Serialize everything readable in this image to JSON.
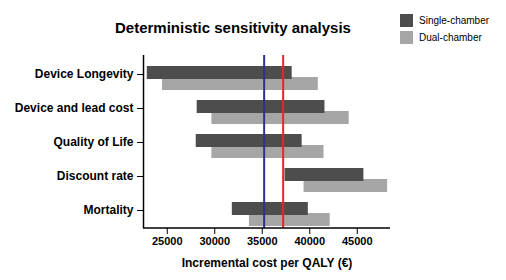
{
  "chart_data": {
    "type": "bar",
    "orientation": "horizontal",
    "title": "Deterministic sensitivity analysis",
    "x_label": "Incremental cost per QALY (€)",
    "categories": [
      "Device Longevity",
      "Device and lead cost",
      "Quality of Life",
      "Discount rate",
      "Mortality"
    ],
    "series": [
      {
        "name": "Single-chamber",
        "color": "#4d4d4d",
        "values": [
          [
            22900,
            38150
          ],
          [
            28150,
            41600
          ],
          [
            28050,
            39200
          ],
          [
            37400,
            45700
          ],
          [
            31850,
            39850
          ]
        ]
      },
      {
        "name": "Dual-chamber",
        "color": "#a6a6a6",
        "values": [
          [
            24500,
            40900
          ],
          [
            29700,
            44150
          ],
          [
            29700,
            41500
          ],
          [
            39400,
            48200
          ],
          [
            33650,
            42150
          ]
        ]
      }
    ],
    "reference_lines": [
      {
        "value": 35200,
        "color": "#2e3192"
      },
      {
        "value": 37200,
        "color": "#e8262a"
      }
    ],
    "xlim": [
      22500,
      48500
    ],
    "xticks": [
      25000,
      30000,
      35000,
      40000,
      45000
    ],
    "legend": "top-right"
  }
}
